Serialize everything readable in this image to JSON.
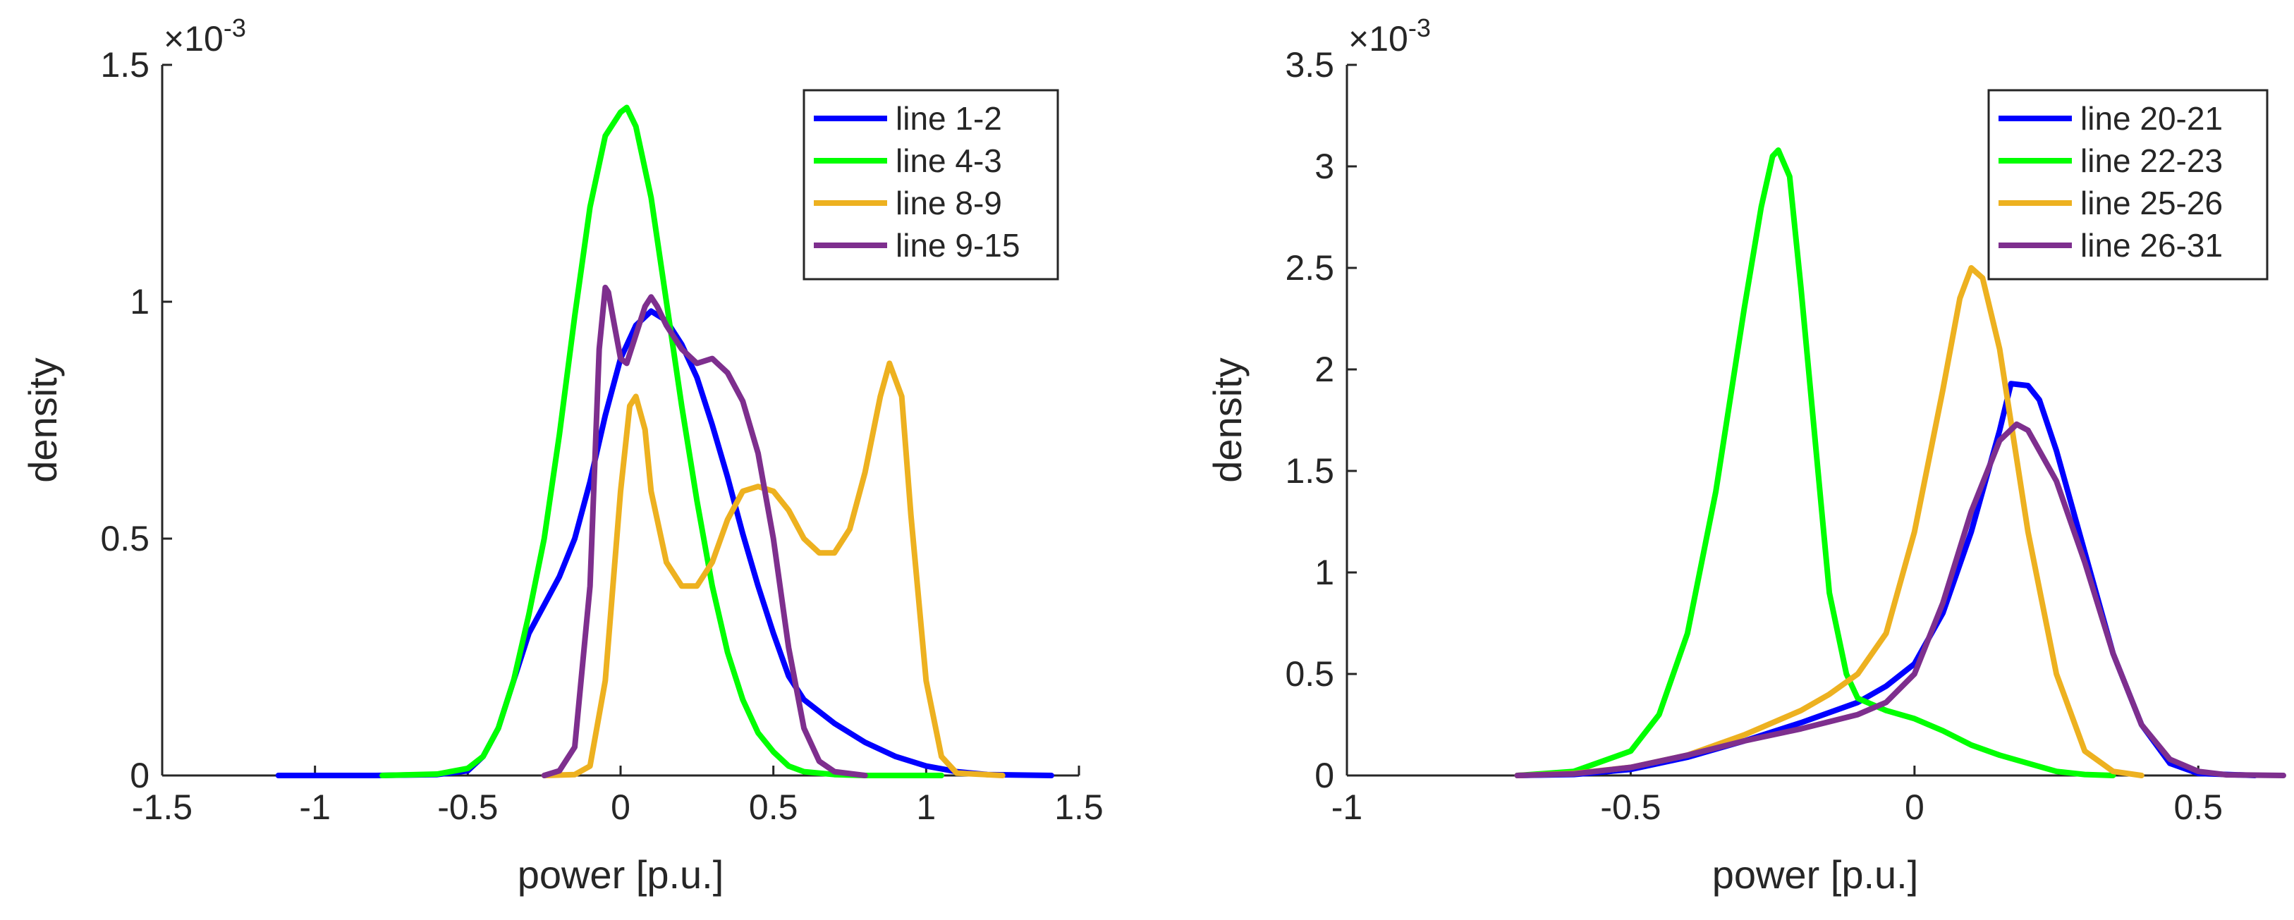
{
  "colors": {
    "blue": "#0000ff",
    "green": "#00ff00",
    "orange": "#edb120",
    "purple": "#7e2f8e",
    "axis": "#262626"
  },
  "chart_data": [
    {
      "type": "line",
      "title": "",
      "xlabel": "power [p.u.]",
      "ylabel": "density",
      "y_exponent": "×10",
      "y_exponent_power": "-3",
      "xlim": [
        -1.5,
        1.5
      ],
      "ylim": [
        0,
        1.5
      ],
      "xticks": [
        -1.5,
        -1,
        -0.5,
        0,
        0.5,
        1,
        1.5
      ],
      "xtick_labels": [
        "-1.5",
        "-1",
        "-0.5",
        "0",
        "0.5",
        "1",
        "1.5"
      ],
      "yticks": [
        0,
        0.5,
        1,
        1.5
      ],
      "ytick_labels": [
        "0",
        "0.5",
        "1",
        "1.5"
      ],
      "grid": false,
      "legend_position": "top-right",
      "series": [
        {
          "name": "line 1-2",
          "color": "#0000ff",
          "x": [
            -1.12,
            -0.8,
            -0.6,
            -0.5,
            -0.45,
            -0.4,
            -0.35,
            -0.3,
            -0.25,
            -0.2,
            -0.15,
            -0.1,
            -0.05,
            0.0,
            0.05,
            0.1,
            0.15,
            0.2,
            0.25,
            0.3,
            0.35,
            0.4,
            0.45,
            0.5,
            0.55,
            0.6,
            0.7,
            0.8,
            0.9,
            1.0,
            1.1,
            1.2,
            1.41
          ],
          "y": [
            0,
            0,
            0.002,
            0.01,
            0.04,
            0.1,
            0.2,
            0.3,
            0.36,
            0.42,
            0.5,
            0.62,
            0.76,
            0.88,
            0.95,
            0.98,
            0.96,
            0.91,
            0.84,
            0.74,
            0.63,
            0.51,
            0.4,
            0.3,
            0.21,
            0.16,
            0.11,
            0.07,
            0.04,
            0.02,
            0.008,
            0.002,
            0
          ]
        },
        {
          "name": "line 4-3",
          "color": "#00ff00",
          "x": [
            -0.78,
            -0.6,
            -0.5,
            -0.45,
            -0.4,
            -0.35,
            -0.3,
            -0.25,
            -0.2,
            -0.15,
            -0.1,
            -0.05,
            0.0,
            0.02,
            0.05,
            0.1,
            0.15,
            0.2,
            0.25,
            0.3,
            0.35,
            0.4,
            0.45,
            0.5,
            0.55,
            0.6,
            0.7,
            0.8,
            1.05
          ],
          "y": [
            0,
            0.003,
            0.015,
            0.04,
            0.1,
            0.2,
            0.34,
            0.5,
            0.72,
            0.97,
            1.2,
            1.35,
            1.4,
            1.41,
            1.37,
            1.22,
            1.0,
            0.78,
            0.58,
            0.4,
            0.26,
            0.16,
            0.09,
            0.05,
            0.02,
            0.008,
            0.002,
            0,
            0
          ]
        },
        {
          "name": "line 8-9",
          "color": "#edb120",
          "x": [
            -0.25,
            -0.15,
            -0.1,
            -0.05,
            0.0,
            0.03,
            0.05,
            0.08,
            0.1,
            0.15,
            0.2,
            0.25,
            0.3,
            0.35,
            0.4,
            0.45,
            0.5,
            0.55,
            0.6,
            0.65,
            0.7,
            0.75,
            0.8,
            0.85,
            0.88,
            0.92,
            0.95,
            1.0,
            1.05,
            1.1,
            1.25
          ],
          "y": [
            0,
            0.002,
            0.02,
            0.2,
            0.6,
            0.78,
            0.8,
            0.73,
            0.6,
            0.45,
            0.4,
            0.4,
            0.45,
            0.54,
            0.6,
            0.61,
            0.6,
            0.56,
            0.5,
            0.47,
            0.47,
            0.52,
            0.64,
            0.8,
            0.87,
            0.8,
            0.55,
            0.2,
            0.04,
            0.005,
            0
          ]
        },
        {
          "name": "line 9-15",
          "color": "#7e2f8e",
          "x": [
            -0.25,
            -0.2,
            -0.15,
            -0.1,
            -0.07,
            -0.05,
            -0.04,
            -0.02,
            0.0,
            0.02,
            0.05,
            0.08,
            0.1,
            0.12,
            0.15,
            0.2,
            0.25,
            0.3,
            0.35,
            0.4,
            0.45,
            0.5,
            0.55,
            0.6,
            0.65,
            0.7,
            0.8
          ],
          "y": [
            0,
            0.01,
            0.06,
            0.4,
            0.9,
            1.03,
            1.02,
            0.95,
            0.88,
            0.87,
            0.93,
            0.99,
            1.01,
            0.99,
            0.95,
            0.9,
            0.87,
            0.88,
            0.85,
            0.79,
            0.68,
            0.5,
            0.27,
            0.1,
            0.03,
            0.008,
            0
          ]
        }
      ]
    },
    {
      "type": "line",
      "title": "",
      "xlabel": "power [p.u.]",
      "ylabel": "density",
      "y_exponent": "×10",
      "y_exponent_power": "-3",
      "xlim": [
        -1,
        0.65
      ],
      "ylim": [
        0,
        3.5
      ],
      "xticks": [
        -1,
        -0.5,
        0,
        0.5
      ],
      "xtick_labels": [
        "-1",
        "-0.5",
        "0",
        "0.5"
      ],
      "yticks": [
        0,
        0.5,
        1,
        1.5,
        2,
        2.5,
        3,
        3.5
      ],
      "ytick_labels": [
        "0",
        "0.5",
        "1",
        "1.5",
        "2",
        "2.5",
        "3",
        "3.5"
      ],
      "grid": false,
      "legend_position": "top-right",
      "series": [
        {
          "name": "line 20-21",
          "color": "#0000ff",
          "x": [
            -0.7,
            -0.6,
            -0.5,
            -0.4,
            -0.3,
            -0.2,
            -0.1,
            -0.05,
            0.0,
            0.05,
            0.1,
            0.15,
            0.17,
            0.2,
            0.22,
            0.25,
            0.3,
            0.35,
            0.4,
            0.45,
            0.5,
            0.6
          ],
          "y": [
            0,
            0.005,
            0.03,
            0.09,
            0.17,
            0.26,
            0.36,
            0.44,
            0.55,
            0.8,
            1.2,
            1.7,
            1.93,
            1.92,
            1.85,
            1.6,
            1.1,
            0.6,
            0.25,
            0.06,
            0.01,
            0
          ]
        },
        {
          "name": "line 22-23",
          "color": "#00ff00",
          "x": [
            -0.7,
            -0.6,
            -0.5,
            -0.45,
            -0.4,
            -0.35,
            -0.3,
            -0.27,
            -0.25,
            -0.24,
            -0.22,
            -0.2,
            -0.17,
            -0.15,
            -0.12,
            -0.1,
            -0.05,
            0.0,
            0.05,
            0.1,
            0.15,
            0.2,
            0.25,
            0.3,
            0.35
          ],
          "y": [
            0,
            0.02,
            0.12,
            0.3,
            0.7,
            1.4,
            2.3,
            2.8,
            3.05,
            3.08,
            2.95,
            2.4,
            1.5,
            0.9,
            0.5,
            0.38,
            0.32,
            0.28,
            0.22,
            0.15,
            0.1,
            0.06,
            0.02,
            0.005,
            0
          ]
        },
        {
          "name": "line 25-26",
          "color": "#edb120",
          "x": [
            -0.7,
            -0.6,
            -0.5,
            -0.4,
            -0.3,
            -0.2,
            -0.15,
            -0.1,
            -0.05,
            0.0,
            0.05,
            0.08,
            0.1,
            0.12,
            0.15,
            0.2,
            0.25,
            0.3,
            0.35,
            0.4
          ],
          "y": [
            0,
            0.01,
            0.04,
            0.1,
            0.2,
            0.32,
            0.4,
            0.5,
            0.7,
            1.2,
            1.9,
            2.35,
            2.5,
            2.45,
            2.1,
            1.2,
            0.5,
            0.12,
            0.02,
            0
          ]
        },
        {
          "name": "line 26-31",
          "color": "#7e2f8e",
          "x": [
            -0.7,
            -0.6,
            -0.5,
            -0.4,
            -0.3,
            -0.2,
            -0.1,
            -0.05,
            0.0,
            0.05,
            0.1,
            0.15,
            0.18,
            0.2,
            0.25,
            0.3,
            0.35,
            0.4,
            0.45,
            0.5,
            0.55,
            0.65
          ],
          "y": [
            0,
            0.008,
            0.04,
            0.1,
            0.17,
            0.23,
            0.3,
            0.36,
            0.5,
            0.85,
            1.3,
            1.65,
            1.73,
            1.7,
            1.45,
            1.05,
            0.6,
            0.25,
            0.08,
            0.02,
            0.003,
            0
          ]
        }
      ]
    }
  ]
}
